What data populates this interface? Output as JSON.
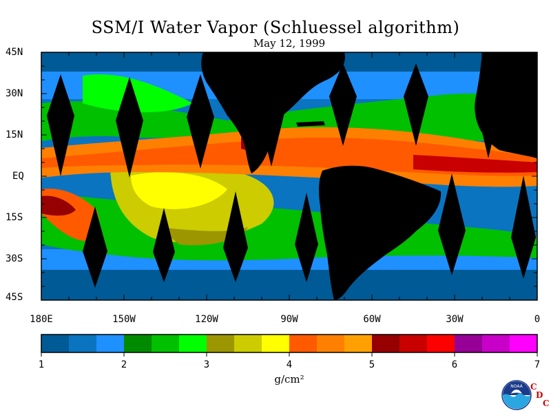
{
  "title": "SSM/I Water Vapor (Schluessel algorithm)",
  "subtitle": "May 12, 1999",
  "lat_labels": [
    "45N",
    "30N",
    "15N",
    "EQ",
    "15S",
    "30S",
    "45S"
  ],
  "lon_labels": [
    "180E",
    "150W",
    "120W",
    "90W",
    "60W",
    "30W",
    "0"
  ],
  "colorbar": {
    "unit": "g/cm²",
    "tick_labels": [
      "1",
      "2",
      "3",
      "4",
      "5",
      "6",
      "7"
    ],
    "colors": [
      "#005a96",
      "#0a74c0",
      "#1e90ff",
      "#008a00",
      "#00c000",
      "#00ff00",
      "#9c9600",
      "#cccc00",
      "#ffff00",
      "#ff5a00",
      "#ff8000",
      "#ffa000",
      "#960000",
      "#c80000",
      "#ff0000",
      "#960096",
      "#c800c8",
      "#ff00ff"
    ]
  },
  "logo": {
    "icon": "noaa-logo-icon",
    "text": "NOAA",
    "org_letters": [
      "C",
      "D",
      "C"
    ]
  }
}
